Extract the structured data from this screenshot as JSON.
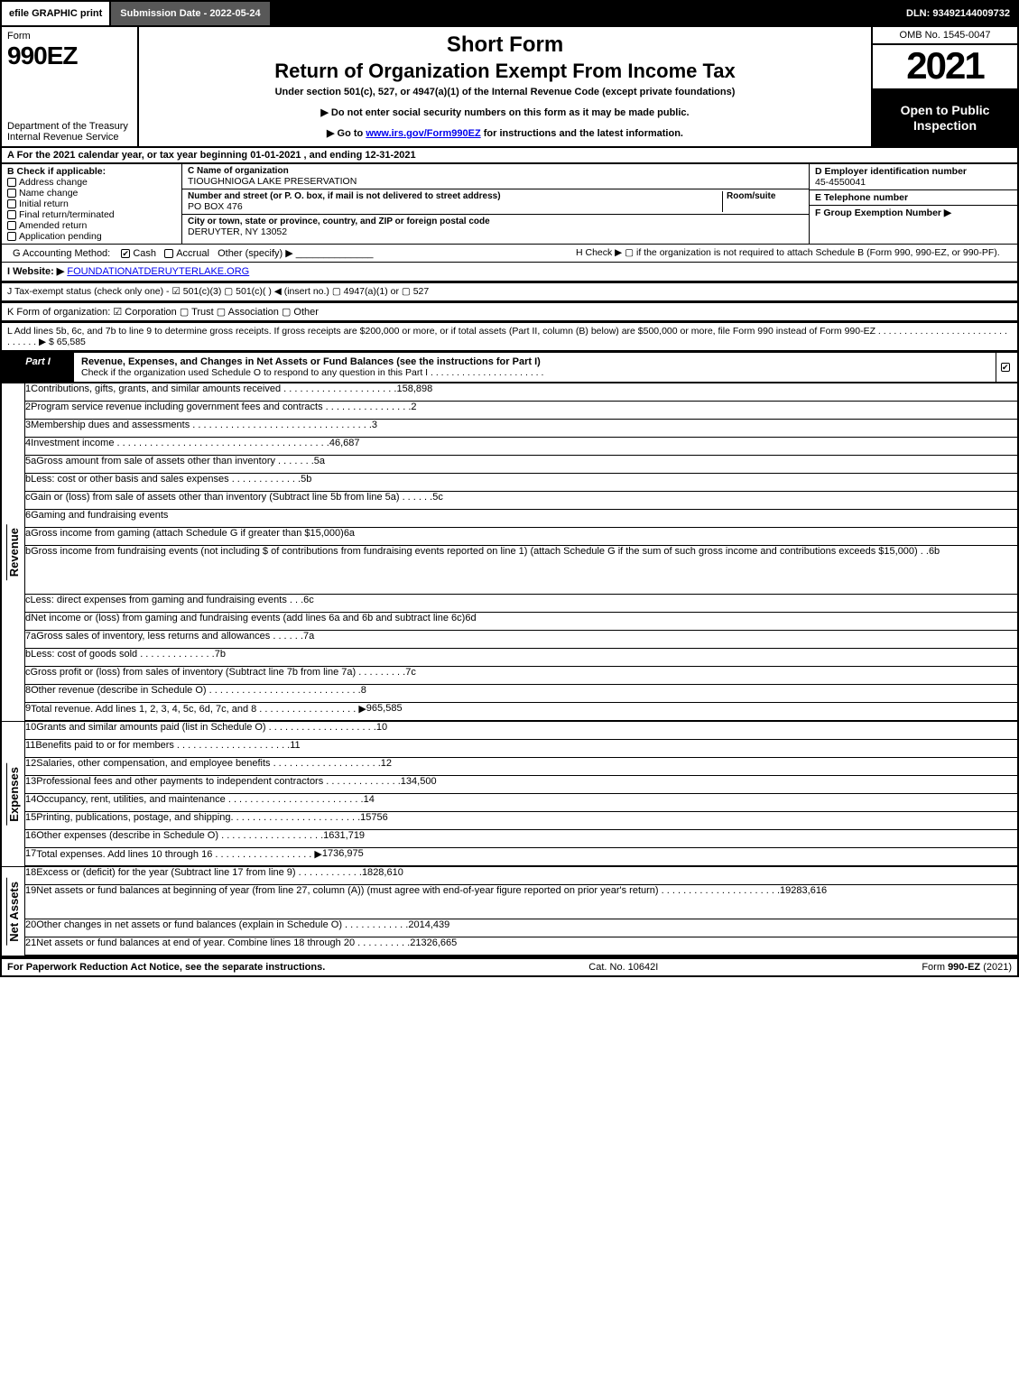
{
  "topbar": {
    "efile": "efile GRAPHIC print",
    "submission_label": "Submission Date - 2022-05-24",
    "dln": "DLN: 93492144009732"
  },
  "header": {
    "form_word": "Form",
    "form_no": "990EZ",
    "dept": "Department of the Treasury\nInternal Revenue Service",
    "title1": "Short Form",
    "title2": "Return of Organization Exempt From Income Tax",
    "subtitle": "Under section 501(c), 527, or 4947(a)(1) of the Internal Revenue Code (except private foundations)",
    "note1": "▶ Do not enter social security numbers on this form as it may be made public.",
    "note2_prefix": "▶ Go to ",
    "note2_link": "www.irs.gov/Form990EZ",
    "note2_suffix": " for instructions and the latest information.",
    "omb": "OMB No. 1545-0047",
    "year": "2021",
    "open": "Open to Public Inspection"
  },
  "A": {
    "text": "A  For the 2021 calendar year, or tax year beginning 01-01-2021 , and ending 12-31-2021"
  },
  "B": {
    "header": "B  Check if applicable:",
    "items": [
      "Address change",
      "Name change",
      "Initial return",
      "Final return/terminated",
      "Amended return",
      "Application pending"
    ]
  },
  "C": {
    "name_label": "C Name of organization",
    "name": "TIOUGHNIOGA LAKE PRESERVATION",
    "street_label": "Number and street (or P. O. box, if mail is not delivered to street address)",
    "room_label": "Room/suite",
    "street": "PO BOX 476",
    "city_label": "City or town, state or province, country, and ZIP or foreign postal code",
    "city": "DERUYTER, NY  13052"
  },
  "D": {
    "label": "D Employer identification number",
    "value": "45-4550041"
  },
  "E": {
    "label": "E Telephone number",
    "value": ""
  },
  "F": {
    "label": "F Group Exemption Number  ▶",
    "value": ""
  },
  "G": {
    "label": "G Accounting Method:",
    "cash": "Cash",
    "accrual": "Accrual",
    "other": "Other (specify) ▶"
  },
  "H": {
    "text": "H  Check ▶  ▢  if the organization is not required to attach Schedule B (Form 990, 990-EZ, or 990-PF)."
  },
  "I": {
    "label": "I Website: ▶",
    "value": "FOUNDATIONATDERUYTERLAKE.ORG"
  },
  "J": {
    "text": "J Tax-exempt status (check only one) - ☑ 501(c)(3)  ▢ 501(c)(  ) ◀ (insert no.)  ▢ 4947(a)(1) or  ▢ 527"
  },
  "K": {
    "text": "K Form of organization:  ☑ Corporation   ▢ Trust   ▢ Association   ▢ Other"
  },
  "L": {
    "text": "L Add lines 5b, 6c, and 7b to line 9 to determine gross receipts. If gross receipts are $200,000 or more, or if total assets (Part II, column (B) below) are $500,000 or more, file Form 990 instead of Form 990-EZ  . . . . . . . . . . . . . . . . . . . . . . . . . . . . . . .  ▶ $ 65,585"
  },
  "part1": {
    "tag": "Part I",
    "title": "Revenue, Expenses, and Changes in Net Assets or Fund Balances (see the instructions for Part I)",
    "sub": "Check if the organization used Schedule O to respond to any question in this Part I . . . . . . . . . . . . . . . . . . . . . .",
    "checked": true
  },
  "sections": {
    "revenue_label": "Revenue",
    "expenses_label": "Expenses",
    "netassets_label": "Net Assets"
  },
  "lines": {
    "1": {
      "n": "1",
      "d": "Contributions, gifts, grants, and similar amounts received . . . . . . . . . . . . . . . . . . . . .",
      "r": "1",
      "a": "58,898"
    },
    "2": {
      "n": "2",
      "d": "Program service revenue including government fees and contracts . . . . . . . . . . . . . . . .",
      "r": "2",
      "a": ""
    },
    "3": {
      "n": "3",
      "d": "Membership dues and assessments . . . . . . . . . . . . . . . . . . . . . . . . . . . . . . . . .",
      "r": "3",
      "a": ""
    },
    "4": {
      "n": "4",
      "d": "Investment income  . . . . . . . . . . . . . . . . . . . . . . . . . . . . . . . . . . . . . . .",
      "r": "4",
      "a": "6,687"
    },
    "5a": {
      "n": "5a",
      "d": "Gross amount from sale of assets other than inventory . . . . . . .",
      "ib": "5a"
    },
    "5b": {
      "n": "b",
      "d": "Less: cost or other basis and sales expenses . . . . . . . . . . . . .",
      "ib": "5b"
    },
    "5c": {
      "n": "c",
      "d": "Gain or (loss) from sale of assets other than inventory (Subtract line 5b from line 5a)  . . . . . .",
      "r": "5c",
      "a": ""
    },
    "6": {
      "n": "6",
      "d": "Gaming and fundraising events"
    },
    "6a": {
      "n": "a",
      "d": "Gross income from gaming (attach Schedule G if greater than $15,000)",
      "ib": "6a"
    },
    "6b": {
      "n": "b",
      "d": "Gross income from fundraising events (not including $                            of contributions from fundraising events reported on line 1) (attach Schedule G if the sum of such gross income and contributions exceeds $15,000)   .   .",
      "ib": "6b"
    },
    "6c": {
      "n": "c",
      "d": "Less: direct expenses from gaming and fundraising events   .   .   .",
      "ib": "6c"
    },
    "6d": {
      "n": "d",
      "d": "Net income or (loss) from gaming and fundraising events (add lines 6a and 6b and subtract line 6c)",
      "r": "6d",
      "a": ""
    },
    "7a": {
      "n": "7a",
      "d": "Gross sales of inventory, less returns and allowances . . . . . .",
      "ib": "7a"
    },
    "7b": {
      "n": "b",
      "d": "Less: cost of goods sold        .   .   .   .   .   .   .   .   .   .   .   .   .   .",
      "ib": "7b"
    },
    "7c": {
      "n": "c",
      "d": "Gross profit or (loss) from sales of inventory (Subtract line 7b from line 7a)  . . . . . . . . .",
      "r": "7c",
      "a": ""
    },
    "8": {
      "n": "8",
      "d": "Other revenue (describe in Schedule O) . . . . . . . . . . . . . . . . . . . . . . . . . . . .",
      "r": "8",
      "a": ""
    },
    "9": {
      "n": "9",
      "d": "Total revenue. Add lines 1, 2, 3, 4, 5c, 6d, 7c, and 8  .  .  .  .  .  .  .  .  .  .  .  .  .  .  .  .  .  .  ▶",
      "r": "9",
      "a": "65,585",
      "bold": true
    },
    "10": {
      "n": "10",
      "d": "Grants and similar amounts paid (list in Schedule O) . . . . . . . . . . . . . . . . . . . .",
      "r": "10",
      "a": ""
    },
    "11": {
      "n": "11",
      "d": "Benefits paid to or for members       .   .   .   .   .   .   .   .   .   .   .   .   .   .   .   .   .   .   .   .   .",
      "r": "11",
      "a": ""
    },
    "12": {
      "n": "12",
      "d": "Salaries, other compensation, and employee benefits . . . . . . . . . . . . . . . . . . . .",
      "r": "12",
      "a": ""
    },
    "13": {
      "n": "13",
      "d": "Professional fees and other payments to independent contractors . . . . . . . . . . . . . .",
      "r": "13",
      "a": "4,500"
    },
    "14": {
      "n": "14",
      "d": "Occupancy, rent, utilities, and maintenance . . . . . . . . . . . . . . . . . . . . . . . . .",
      "r": "14",
      "a": ""
    },
    "15": {
      "n": "15",
      "d": "Printing, publications, postage, and shipping. . . . . . . . . . . . . . . . . . . . . . . .",
      "r": "15",
      "a": "756"
    },
    "16": {
      "n": "16",
      "d": "Other expenses (describe in Schedule O)     .   .   .   .   .   .   .   .   .   .   .   .   .   .   .   .   .   .   .",
      "r": "16",
      "a": "31,719"
    },
    "17": {
      "n": "17",
      "d": "Total expenses. Add lines 10 through 16      .   .   .   .   .   .   .   .   .   .   .   .   .   .   .   .   .   .  ▶",
      "r": "17",
      "a": "36,975",
      "bold": true
    },
    "18": {
      "n": "18",
      "d": "Excess or (deficit) for the year (Subtract line 17 from line 9)        .   .   .   .   .   .   .   .   .   .   .   .",
      "r": "18",
      "a": "28,610"
    },
    "19": {
      "n": "19",
      "d": "Net assets or fund balances at beginning of year (from line 27, column (A)) (must agree with end-of-year figure reported on prior year's return) . . . . . . . . . . . . . . . . . . . . . .",
      "r": "19",
      "a": "283,616"
    },
    "20": {
      "n": "20",
      "d": "Other changes in net assets or fund balances (explain in Schedule O) . . . . . . . . . . . .",
      "r": "20",
      "a": "14,439"
    },
    "21": {
      "n": "21",
      "d": "Net assets or fund balances at end of year. Combine lines 18 through 20 . . . . . . . . . .",
      "r": "21",
      "a": "326,665"
    }
  },
  "footer": {
    "left": "For Paperwork Reduction Act Notice, see the separate instructions.",
    "mid": "Cat. No. 10642I",
    "right_prefix": "Form ",
    "right_form": "990-EZ",
    "right_suffix": " (2021)"
  },
  "colors": {
    "black": "#000000",
    "white": "#ffffff",
    "darkgrey": "#585858",
    "shade": "#d0d0d0",
    "link": "#0000ee"
  }
}
